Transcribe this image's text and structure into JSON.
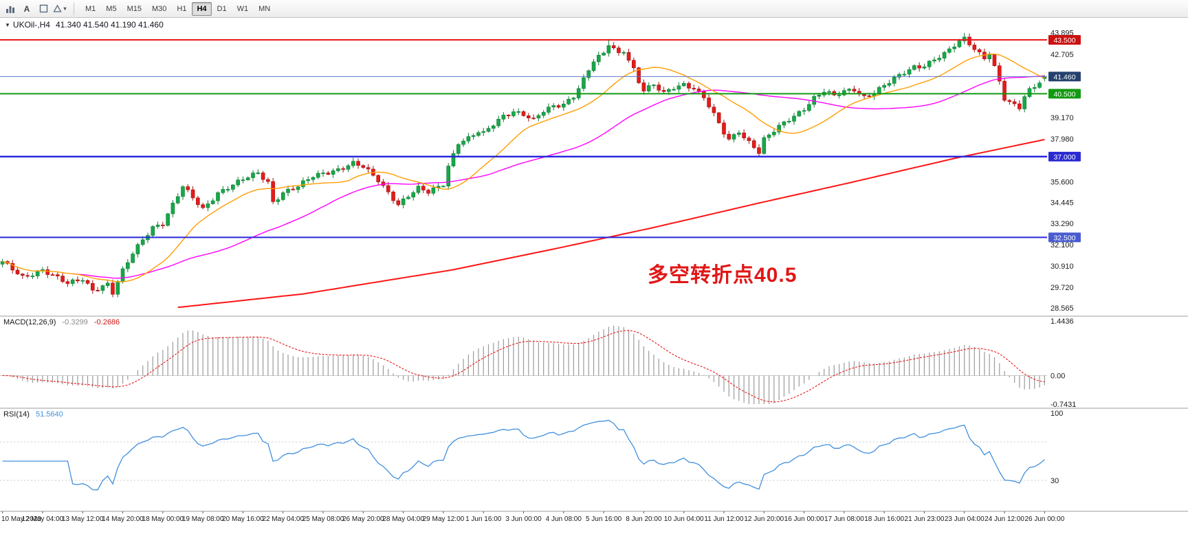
{
  "toolbar": {
    "text_tool_label": "A",
    "shapes_caret": "▾",
    "timeframes": [
      "M1",
      "M5",
      "M15",
      "M30",
      "H1",
      "H4",
      "D1",
      "W1",
      "MN"
    ],
    "active_timeframe": "H4"
  },
  "chart": {
    "symbol_title": "UKOil-,H4",
    "ohlc_text": "41.340 41.540 41.190 41.460"
  },
  "chart_data": {
    "type": "candlestick",
    "symbol": "UKOil-",
    "timeframe": "H4",
    "current": {
      "open": 41.34,
      "high": 41.54,
      "low": 41.19,
      "close": 41.46
    },
    "ylim": [
      28.42,
      44.42
    ],
    "price_axis": {
      "ticks": [
        "43.895",
        "42.705",
        "39.170",
        "37.980",
        "35.600",
        "34.445",
        "33.290",
        "32.100",
        "30.910",
        "29.720",
        "28.565"
      ],
      "badges": [
        {
          "value": "43.500",
          "price": 43.5,
          "color": "#cc1111"
        },
        {
          "value": "41.460",
          "price": 41.46,
          "color": "#24416e"
        },
        {
          "value": "40.500",
          "price": 40.5,
          "color": "#129a12"
        },
        {
          "value": "37.000",
          "price": 37.0,
          "color": "#2a2ad2"
        },
        {
          "value": "32.500",
          "price": 32.5,
          "color": "#4a5bd0"
        }
      ]
    },
    "hlines": [
      {
        "price": 43.5,
        "color": "#e81717",
        "width": 2
      },
      {
        "price": 41.46,
        "color": "#5b79c9",
        "width": 1
      },
      {
        "price": 40.5,
        "color": "#119a11",
        "width": 2
      },
      {
        "price": 37.0,
        "color": "#2828dd",
        "width": 2.5
      },
      {
        "price": 32.5,
        "color": "#2828dd",
        "width": 2
      }
    ],
    "annotation": {
      "text": "多空转折点40.5",
      "color": "#e01717"
    },
    "time_labels": [
      "10 May 2020",
      "12 May 04:00",
      "13 May 12:00",
      "14 May 20:00",
      "18 May 00:00",
      "19 May 08:00",
      "20 May 16:00",
      "22 May 04:00",
      "25 May 08:00",
      "26 May 20:00",
      "28 May 04:00",
      "29 May 12:00",
      "1 Jun 16:00",
      "3 Jun 00:00",
      "4 Jun 08:00",
      "5 Jun 16:00",
      "8 Jun 20:00",
      "10 Jun 04:00",
      "11 Jun 12:00",
      "12 Jun 20:00",
      "16 Jun 00:00",
      "17 Jun 08:00",
      "18 Jun 16:00",
      "21 Jun 23:00",
      "23 Jun 04:00",
      "24 Jun 12:00",
      "26 Jun 00:00"
    ],
    "candles": {
      "count": 209,
      "per_label": 8,
      "up_color": "#18a848",
      "up_stroke": "#0c7a33",
      "down_color": "#e51b1b",
      "down_stroke": "#a31111",
      "anchors": [
        [
          0,
          31.1
        ],
        [
          4,
          30.3
        ],
        [
          8,
          30.7
        ],
        [
          13,
          29.9
        ],
        [
          16,
          30.2
        ],
        [
          18,
          29.6
        ],
        [
          21,
          29.9
        ],
        [
          22,
          29.4
        ],
        [
          24,
          30.6
        ],
        [
          26,
          31.6
        ],
        [
          28,
          32.4
        ],
        [
          30,
          33.1
        ],
        [
          32,
          33.3
        ],
        [
          34,
          34.3
        ],
        [
          36,
          35.3
        ],
        [
          38,
          34.7
        ],
        [
          40,
          34.1
        ],
        [
          43,
          35.0
        ],
        [
          46,
          35.4
        ],
        [
          48,
          35.7
        ],
        [
          51,
          36.1
        ],
        [
          53,
          35.6
        ],
        [
          54,
          34.5
        ],
        [
          56,
          35.0
        ],
        [
          59,
          35.3
        ],
        [
          62,
          35.9
        ],
        [
          64,
          36.1
        ],
        [
          67,
          36.3
        ],
        [
          70,
          36.6
        ],
        [
          72,
          36.4
        ],
        [
          75,
          35.7
        ],
        [
          78,
          34.7
        ],
        [
          79,
          34.35
        ],
        [
          81,
          34.8
        ],
        [
          83,
          35.2
        ],
        [
          85,
          35.0
        ],
        [
          88,
          35.5
        ],
        [
          89,
          36.5
        ],
        [
          91,
          37.8
        ],
        [
          93,
          38.0
        ],
        [
          95,
          38.35
        ],
        [
          96,
          38.25
        ],
        [
          98,
          38.8
        ],
        [
          100,
          39.3
        ],
        [
          102,
          39.55
        ],
        [
          104,
          39.35
        ],
        [
          106,
          39.0
        ],
        [
          108,
          39.5
        ],
        [
          110,
          39.8
        ],
        [
          112,
          39.95
        ],
        [
          114,
          40.4
        ],
        [
          116,
          41.3
        ],
        [
          118,
          42.3
        ],
        [
          120,
          42.7
        ],
        [
          121,
          43.25
        ],
        [
          123,
          42.75
        ],
        [
          124,
          42.95
        ],
        [
          126,
          41.9
        ],
        [
          127,
          41.2
        ],
        [
          128,
          40.7
        ],
        [
          130,
          40.95
        ],
        [
          132,
          40.5
        ],
        [
          134,
          40.85
        ],
        [
          136,
          41.05
        ],
        [
          138,
          40.85
        ],
        [
          140,
          40.3
        ],
        [
          142,
          39.3
        ],
        [
          144,
          38.3
        ],
        [
          145,
          37.9
        ],
        [
          147,
          38.45
        ],
        [
          148,
          38.1
        ],
        [
          150,
          37.6
        ],
        [
          151,
          37.25
        ],
        [
          152,
          37.95
        ],
        [
          154,
          38.4
        ],
        [
          156,
          38.85
        ],
        [
          158,
          39.25
        ],
        [
          160,
          39.7
        ],
        [
          162,
          40.3
        ],
        [
          164,
          40.65
        ],
        [
          166,
          40.35
        ],
        [
          168,
          40.6
        ],
        [
          170,
          40.75
        ],
        [
          172,
          40.35
        ],
        [
          174,
          40.6
        ],
        [
          176,
          40.95
        ],
        [
          178,
          41.3
        ],
        [
          180,
          41.65
        ],
        [
          182,
          42.0
        ],
        [
          184,
          42.1
        ],
        [
          186,
          42.45
        ],
        [
          188,
          42.7
        ],
        [
          190,
          43.15
        ],
        [
          192,
          43.55
        ],
        [
          193,
          43.3
        ],
        [
          194,
          43.0
        ],
        [
          196,
          42.55
        ],
        [
          197,
          42.8
        ],
        [
          199,
          41.2
        ],
        [
          200,
          40.2
        ],
        [
          201,
          39.95
        ],
        [
          203,
          39.7
        ],
        [
          204,
          40.3
        ],
        [
          205,
          40.7
        ],
        [
          206,
          40.95
        ],
        [
          207,
          41.2
        ],
        [
          208,
          41.46
        ]
      ],
      "spike_highs": [
        [
          121,
          43.55
        ],
        [
          192,
          43.895
        ]
      ]
    },
    "moving_averages": {
      "fast": {
        "period": 16,
        "color": "#ff9d00"
      },
      "mid": {
        "period": 44,
        "color": "#ff00ff"
      },
      "slow": {
        "color": "#ff1414",
        "anchors": [
          [
            35,
            28.6
          ],
          [
            60,
            29.35
          ],
          [
            90,
            30.7
          ],
          [
            110,
            31.85
          ],
          [
            130,
            33.05
          ],
          [
            150,
            34.35
          ],
          [
            170,
            35.6
          ],
          [
            190,
            36.9
          ],
          [
            208,
            37.95
          ]
        ]
      }
    },
    "macd": {
      "label": "MACD(12,26,9)",
      "value_main": "-0.3299",
      "value_signal": "-0.2686",
      "scale": {
        "max": "1.4436",
        "zero": "0.00",
        "min": "-0.7431"
      },
      "hist_color": "#9a9a9a",
      "signal_color": "#e81717"
    },
    "rsi": {
      "label": "RSI(14)",
      "value": "51.5640",
      "color": "#3f8fdd",
      "scale_labels": [
        {
          "value": "100",
          "level": 100
        },
        {
          "value": "30",
          "level": 30
        }
      ],
      "levels": [
        70,
        30
      ]
    }
  }
}
